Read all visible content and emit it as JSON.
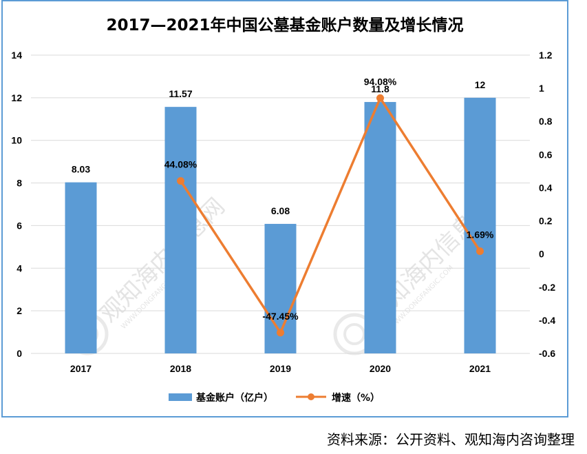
{
  "title": "2017—2021年中国公墓基金账户数量及增长情况",
  "source": "资料来源：公开资料、观知海内咨询整理",
  "watermark": {
    "text": "观知海内信息网",
    "subtext": "WWW.DONGFANGIC.COM"
  },
  "colors": {
    "bar": "#5B9BD5",
    "line": "#ED7D31",
    "grid": "#D9D9D9",
    "frame": "#5B9BD5"
  },
  "chart_data": {
    "type": "bar",
    "categories": [
      "2017",
      "2018",
      "2019",
      "2020",
      "2021"
    ],
    "series": [
      {
        "name": "基金账户（亿户）",
        "type": "bar",
        "axis": "left",
        "values": [
          8.03,
          11.57,
          6.08,
          11.8,
          12
        ],
        "labels": [
          "8.03",
          "11.57",
          "6.08",
          "11.8",
          "12"
        ]
      },
      {
        "name": "增速（%）",
        "type": "line",
        "axis": "right",
        "values": [
          null,
          0.4408,
          -0.4745,
          0.9408,
          0.0169
        ],
        "labels": [
          "",
          "44.08%",
          "-47.45%",
          "94.08%",
          "1.69%"
        ]
      }
    ],
    "y_left": {
      "min": 0,
      "max": 14,
      "step": 2,
      "ticks": [
        "0",
        "2",
        "4",
        "6",
        "8",
        "10",
        "12",
        "14"
      ]
    },
    "y_right": {
      "min": -0.6,
      "max": 1.2,
      "step": 0.2,
      "ticks": [
        "-0.6",
        "-0.4",
        "-0.2",
        "0",
        "0.2",
        "0.4",
        "0.6",
        "0.8",
        "1",
        "1.2"
      ]
    },
    "grid": true,
    "legend_position": "bottom"
  }
}
